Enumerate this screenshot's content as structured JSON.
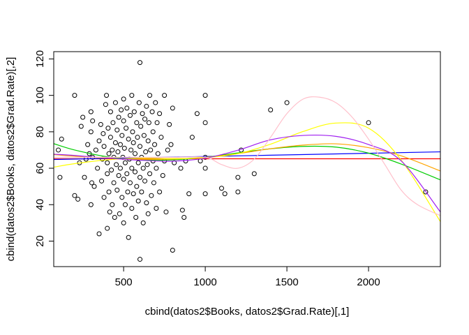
{
  "chart_data": {
    "type": "scatter",
    "title": "",
    "xlabel": "cbind(datos2$Books, datos2$Grad.Rate)[,1]",
    "ylabel": "cbind(datos2$Books, datos2$Grad.Rate)[,2]",
    "xlim": [
      72,
      2440
    ],
    "ylim": [
      6,
      124
    ],
    "x_ticks": [
      500,
      1000,
      1500,
      2000
    ],
    "y_ticks": [
      20,
      40,
      60,
      80,
      100,
      120
    ],
    "point_color": "#000000",
    "points": [
      [
        100,
        70
      ],
      [
        110,
        55
      ],
      [
        120,
        76
      ],
      [
        200,
        100
      ],
      [
        200,
        45
      ],
      [
        220,
        43
      ],
      [
        230,
        63
      ],
      [
        240,
        83
      ],
      [
        250,
        88
      ],
      [
        260,
        55
      ],
      [
        270,
        65
      ],
      [
        280,
        73
      ],
      [
        290,
        68
      ],
      [
        300,
        91
      ],
      [
        300,
        80
      ],
      [
        300,
        40
      ],
      [
        305,
        52
      ],
      [
        310,
        86
      ],
      [
        310,
        66
      ],
      [
        320,
        50
      ],
      [
        330,
        70
      ],
      [
        340,
        60
      ],
      [
        350,
        75
      ],
      [
        350,
        24
      ],
      [
        360,
        84
      ],
      [
        365,
        53
      ],
      [
        370,
        65
      ],
      [
        375,
        79
      ],
      [
        380,
        72
      ],
      [
        380,
        44
      ],
      [
        390,
        95
      ],
      [
        395,
        100
      ],
      [
        400,
        63
      ],
      [
        400,
        57
      ],
      [
        400,
        27
      ],
      [
        405,
        82
      ],
      [
        410,
        68
      ],
      [
        410,
        47
      ],
      [
        415,
        36
      ],
      [
        420,
        91
      ],
      [
        420,
        77
      ],
      [
        425,
        59
      ],
      [
        430,
        70
      ],
      [
        430,
        40
      ],
      [
        435,
        85
      ],
      [
        440,
        66
      ],
      [
        440,
        52
      ],
      [
        445,
        33
      ],
      [
        450,
        96
      ],
      [
        450,
        74
      ],
      [
        455,
        62
      ],
      [
        460,
        81
      ],
      [
        460,
        48
      ],
      [
        465,
        69
      ],
      [
        470,
        56
      ],
      [
        470,
        88
      ],
      [
        475,
        35
      ],
      [
        480,
        73
      ],
      [
        480,
        60
      ],
      [
        485,
        92
      ],
      [
        490,
        44
      ],
      [
        490,
        78
      ],
      [
        495,
        66
      ],
      [
        500,
        54
      ],
      [
        500,
        86
      ],
      [
        500,
        30
      ],
      [
        500,
        98
      ],
      [
        505,
        71
      ],
      [
        510,
        63
      ],
      [
        510,
        40
      ],
      [
        515,
        82
      ],
      [
        520,
        57
      ],
      [
        520,
        93
      ],
      [
        525,
        47
      ],
      [
        530,
        76
      ],
      [
        530,
        22
      ],
      [
        535,
        65
      ],
      [
        540,
        89
      ],
      [
        540,
        52
      ],
      [
        545,
        70
      ],
      [
        550,
        100
      ],
      [
        550,
        60
      ],
      [
        550,
        38
      ],
      [
        555,
        80
      ],
      [
        560,
        74
      ],
      [
        560,
        46
      ],
      [
        565,
        91
      ],
      [
        570,
        58
      ],
      [
        570,
        68
      ],
      [
        575,
        33
      ],
      [
        580,
        85
      ],
      [
        580,
        50
      ],
      [
        585,
        77
      ],
      [
        590,
        63
      ],
      [
        590,
        42
      ],
      [
        595,
        96
      ],
      [
        600,
        55
      ],
      [
        600,
        118
      ],
      [
        600,
        72
      ],
      [
        600,
        10
      ],
      [
        605,
        83
      ],
      [
        610,
        47
      ],
      [
        610,
        66
      ],
      [
        615,
        90
      ],
      [
        620,
        60
      ],
      [
        620,
        30
      ],
      [
        625,
        78
      ],
      [
        630,
        53
      ],
      [
        630,
        87
      ],
      [
        635,
        69
      ],
      [
        640,
        41
      ],
      [
        640,
        94
      ],
      [
        645,
        62
      ],
      [
        650,
        75
      ],
      [
        650,
        35
      ],
      [
        655,
        85
      ],
      [
        660,
        57
      ],
      [
        660,
        100
      ],
      [
        665,
        70
      ],
      [
        670,
        45
      ],
      [
        675,
        91
      ],
      [
        680,
        64
      ],
      [
        680,
        80
      ],
      [
        685,
        52
      ],
      [
        690,
        73
      ],
      [
        695,
        96
      ],
      [
        700,
        60
      ],
      [
        700,
        38
      ],
      [
        705,
        85
      ],
      [
        710,
        68
      ],
      [
        720,
        90
      ],
      [
        720,
        47
      ],
      [
        730,
        77
      ],
      [
        740,
        56
      ],
      [
        750,
        64
      ],
      [
        750,
        100
      ],
      [
        760,
        36
      ],
      [
        770,
        70
      ],
      [
        780,
        84
      ],
      [
        790,
        73
      ],
      [
        800,
        93
      ],
      [
        800,
        15
      ],
      [
        810,
        63
      ],
      [
        850,
        60
      ],
      [
        860,
        37
      ],
      [
        870,
        33
      ],
      [
        880,
        64
      ],
      [
        900,
        46
      ],
      [
        920,
        77
      ],
      [
        950,
        90
      ],
      [
        970,
        64
      ],
      [
        1000,
        66
      ],
      [
        1000,
        85
      ],
      [
        1000,
        100
      ],
      [
        1000,
        46
      ],
      [
        1000,
        60
      ],
      [
        1100,
        49
      ],
      [
        1120,
        46
      ],
      [
        1200,
        47
      ],
      [
        1200,
        55
      ],
      [
        1220,
        70
      ],
      [
        1300,
        57
      ],
      [
        1400,
        92
      ],
      [
        1500,
        96
      ],
      [
        2000,
        85
      ],
      [
        2350,
        47
      ]
    ],
    "series": [
      {
        "name": "red",
        "color": "#ff0000",
        "x": [
          72,
          2440
        ],
        "y": [
          65.2,
          65.2
        ]
      },
      {
        "name": "blue",
        "color": "#0000ff",
        "x": [
          72,
          2440
        ],
        "y": [
          64.8,
          69.0
        ]
      },
      {
        "name": "green",
        "color": "#00cc00",
        "x": [
          72,
          200,
          400,
          600,
          800,
          1000,
          1200,
          1400,
          1600,
          1800,
          2000,
          2200,
          2440
        ],
        "y": [
          73.5,
          70.0,
          66.3,
          64.5,
          64.6,
          66.0,
          68.4,
          70.7,
          72.0,
          71.6,
          68.3,
          62.3,
          53.6
        ]
      },
      {
        "name": "orange",
        "color": "#ffa500",
        "x": [
          72,
          200,
          400,
          600,
          800,
          1000,
          1200,
          1400,
          1600,
          1800,
          2000,
          2200,
          2440
        ],
        "y": [
          67.5,
          66.6,
          65.5,
          64.9,
          65.0,
          66.0,
          68.0,
          70.7,
          72.7,
          73.4,
          71.3,
          66.8,
          58.5
        ]
      },
      {
        "name": "yellow",
        "color": "#ffff00",
        "x": [
          72,
          200,
          400,
          600,
          800,
          1000,
          1200,
          1400,
          1600,
          1800,
          2000,
          2200,
          2440
        ],
        "y": [
          60.6,
          62.5,
          64.6,
          65.5,
          65.3,
          65.8,
          68.0,
          73.2,
          80.2,
          84.8,
          82.0,
          64.5,
          30.7
        ]
      },
      {
        "name": "purple",
        "color": "#a020f0",
        "x": [
          72,
          200,
          400,
          600,
          800,
          1000,
          1200,
          1400,
          1600,
          1800,
          2000,
          2200,
          2440
        ],
        "y": [
          67.7,
          67.0,
          65.6,
          64.4,
          63.9,
          65.5,
          69.9,
          75.6,
          78.0,
          77.5,
          73.0,
          64.0,
          36.0
        ]
      },
      {
        "name": "pink",
        "color": "#ffc0cb",
        "x": [
          72,
          200,
          400,
          600,
          800,
          1000,
          1100,
          1200,
          1300,
          1400,
          1500,
          1600,
          1700,
          1800,
          1900,
          2000,
          2100,
          2200,
          2300,
          2440
        ],
        "y": [
          66.0,
          66.0,
          66.0,
          66.0,
          66.0,
          66.0,
          62.0,
          60.0,
          65.0,
          77.0,
          90.0,
          98.0,
          99.0,
          96.0,
          88.0,
          76.0,
          62.0,
          48.0,
          40.0,
          34.0
        ]
      }
    ]
  }
}
